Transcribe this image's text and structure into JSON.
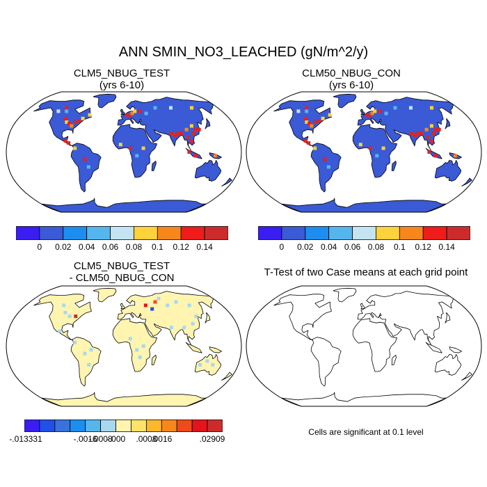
{
  "title": "ANN SMIN_NO3_LEACHED (gN/m^2/y)",
  "panels": [
    {
      "title_line1": "CLM5_NBUG_TEST",
      "title_line2": "(yrs 6-10)",
      "fill": "Case field"
    },
    {
      "title_line1": "CLM50_NBUG_CON",
      "title_line2": "(yrs 6-10)",
      "fill": "Case field"
    },
    {
      "title_line1": "CLM5_NBUG_TEST",
      "title_line2": "- CLM50_NBUG_CON",
      "fill": "Difference field"
    },
    {
      "title_line1": "T-Test of two Case means at each grid point",
      "note": "Cells are significant at 0.1 level"
    }
  ],
  "colorbar_case": {
    "colors": [
      "#3a1df2",
      "#3a5ad6",
      "#1d8ef0",
      "#55b6ee",
      "#c4e4f2",
      "#fdd23a",
      "#f7871c",
      "#ef1c1c",
      "#cd2b2b"
    ],
    "labels": [
      "0",
      "0.02",
      "0.04",
      "0.06",
      "0.08",
      "0.1",
      "0.12",
      "0.14"
    ]
  },
  "colorbar_diff": {
    "colors": [
      "#3a1df2",
      "#2050e8",
      "#3a72dc",
      "#1d8ef0",
      "#55b6ee",
      "#a8d8ee",
      "#fff5b0",
      "#fde36a",
      "#fbb82c",
      "#f7871c",
      "#ef4a1c",
      "#e3141c",
      "#cd2b2b"
    ],
    "labels": [
      ".013331",
      ".0016",
      ".0008",
      ".000",
      ".0008",
      ".0016",
      ".02909"
    ],
    "label_signs": [
      "-",
      "-",
      "-",
      "-",
      "",
      "",
      ""
    ]
  },
  "chart_data": [
    {
      "type": "heatmap",
      "projection": "Robinson",
      "title": "CLM5_NBUG_TEST (yrs 6-10)",
      "legend_levels": [
        0,
        0.02,
        0.04,
        0.06,
        0.08,
        0.1,
        0.12,
        0.14
      ]
    },
    {
      "type": "heatmap",
      "projection": "Robinson",
      "title": "CLM50_NBUG_CON (yrs 6-10)",
      "legend_levels": [
        0,
        0.02,
        0.04,
        0.06,
        0.08,
        0.1,
        0.12,
        0.14
      ]
    },
    {
      "type": "heatmap",
      "projection": "Robinson",
      "title": "CLM5_NBUG_TEST - CLM50_NBUG_CON",
      "legend_levels": [
        -0.013331,
        -0.0016,
        -0.0008,
        -0.0,
        0.0008,
        0.0016,
        0.02909
      ]
    },
    {
      "type": "heatmap",
      "projection": "Robinson",
      "title": "T-Test of two Case means at each grid point",
      "note": "Cells are significant at 0.1 level"
    }
  ]
}
